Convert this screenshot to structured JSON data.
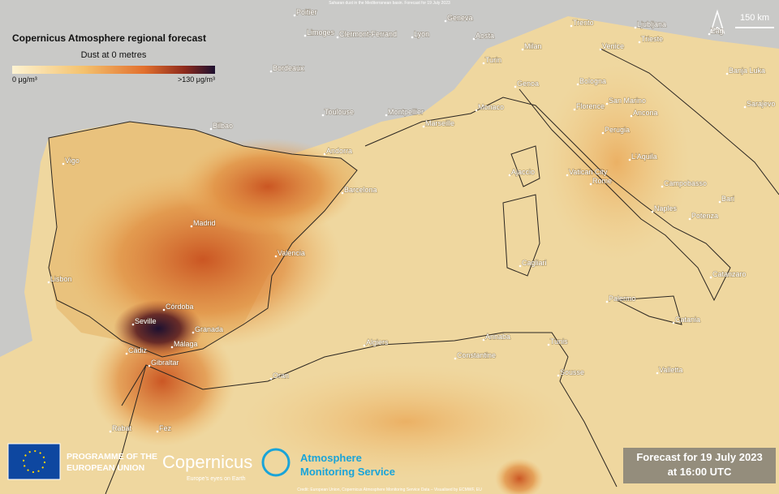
{
  "header": {
    "caption": "Saharan dust in the Mediterranean basin. Forecast for 19 July 2023"
  },
  "legend": {
    "title": "Copernicus Atmosphere regional forecast",
    "subtitle": "Dust at 0 metres",
    "min_label": "0 μg/m³",
    "max_label": ">130 μg/m³"
  },
  "scale": "150 km",
  "cities": [
    "Poitier",
    "Limoges",
    "Clermont-Ferrand",
    "Lyon",
    "Geneva",
    "Aosta",
    "Trento",
    "Ljubljana",
    "Zag",
    "Milan",
    "Venice",
    "Trieste",
    "Bordeaux",
    "Turin",
    "Banja Luka",
    "Genoa",
    "Bologna",
    "Sarajevo",
    "Toulouse",
    "Montpellier",
    "Monaco",
    "Marseille",
    "Florence",
    "San Marino",
    "Ancona",
    "Bilbao",
    "Perugia",
    "Andorra",
    "Vigo",
    "Ajaccio",
    "Vatican City",
    "Rome",
    "L'Aquila",
    "Campobasso",
    "Barcelona",
    "Bari",
    "Naples",
    "Potenza",
    "Madrid",
    "Valencia",
    "Cagliari",
    "Lisbon",
    "Catanzaro",
    "Palermo",
    "Córdoba",
    "Seville",
    "Catania",
    "Granada",
    "Málaga",
    "Annaba",
    "Algiers",
    "Tunis",
    "Cádiz",
    "Constantine",
    "Gibraltar",
    "Valletta",
    "Sousse",
    "Oran",
    "Rabat",
    "Fez"
  ],
  "footer": {
    "eu": [
      "PROGRAMME OF THE",
      "EUROPEAN UNION"
    ],
    "copernicus": "Copernicus",
    "copernicus_tagline": "Europe's eyes on Earth",
    "cams": [
      "Atmosphere",
      "Monitoring Service"
    ],
    "forecast": [
      "Forecast for 19 July 2023",
      "at 16:00 UTC"
    ],
    "credit": "Credit: European Union, Copernicus Atmosphere Monitoring Service Data – Visualised by ECMWF, EU"
  }
}
